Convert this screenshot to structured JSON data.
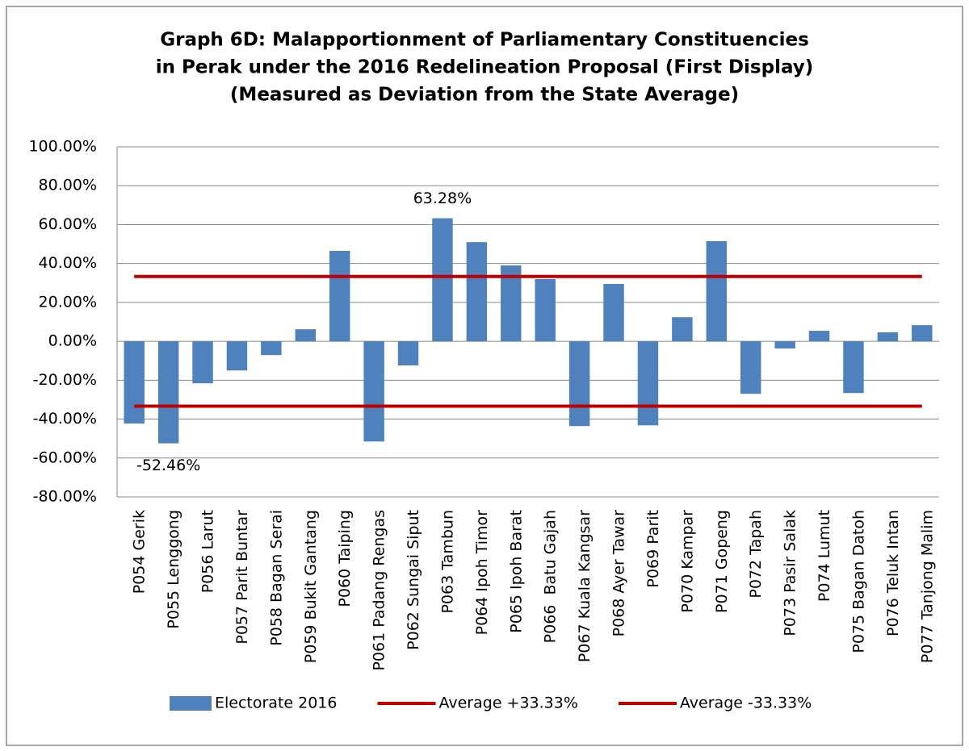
{
  "chart_data": {
    "type": "bar",
    "title": [
      "Graph 6D: Malapportionment of Parliamentary Constituencies",
      "in Perak under the 2016 Redelineation Proposal (First Display)",
      "(Measured as Deviation from the State Average)"
    ],
    "categories": [
      "P054 Gerik",
      "P055 Lenggong",
      "P056 Larut",
      "P057 Parit Buntar",
      "P058 Bagan Serai",
      "P059 Bukit Gantang",
      "P060 Taiping",
      "P061 Padang Rengas",
      "P062 Sungai Siput",
      "P063 Tambun",
      "P064 Ipoh Timor",
      "P065 Ipoh Barat",
      "P066  Batu Gajah",
      "P067 Kuala Kangsar",
      "P068 Ayer Tawar",
      "P069 Parit",
      "P070 Kampar",
      "P071 Gopeng",
      "P072 Tapah",
      "P073 Pasir Salak",
      "P074 Lumut",
      "P075 Bagan Datoh",
      "P076 Teluk Intan",
      "P077 Tanjong Malim"
    ],
    "series": [
      {
        "name": "Electorate 2016",
        "type": "bar",
        "color": "#4f81bd",
        "values": [
          -42.3,
          -52.46,
          -21.6,
          -15,
          -7.1,
          6.2,
          46.5,
          -51.5,
          -12.4,
          63.28,
          51,
          39,
          32,
          -43.6,
          29.5,
          -43.2,
          12.4,
          51.5,
          -27,
          -3.7,
          5.4,
          -26.6,
          4.6,
          8.3
        ],
        "value_labels": [
          null,
          "-52.46%",
          null,
          null,
          null,
          null,
          null,
          null,
          null,
          "63.28%",
          null,
          null,
          null,
          null,
          null,
          null,
          null,
          null,
          null,
          null,
          null,
          null,
          null,
          null
        ]
      },
      {
        "name": "Average +33.33%",
        "type": "line",
        "color": "#c00000",
        "values": [
          33.33,
          33.33,
          33.33,
          33.33,
          33.33,
          33.33,
          33.33,
          33.33,
          33.33,
          33.33,
          33.33,
          33.33,
          33.33,
          33.33,
          33.33,
          33.33,
          33.33,
          33.33,
          33.33,
          33.33,
          33.33,
          33.33,
          33.33,
          33.33
        ]
      },
      {
        "name": "Average -33.33%",
        "type": "line",
        "color": "#c00000",
        "values": [
          -33.33,
          -33.33,
          -33.33,
          -33.33,
          -33.33,
          -33.33,
          -33.33,
          -33.33,
          -33.33,
          -33.33,
          -33.33,
          -33.33,
          -33.33,
          -33.33,
          -33.33,
          -33.33,
          -33.33,
          -33.33,
          -33.33,
          -33.33,
          -33.33,
          -33.33,
          -33.33,
          -33.33
        ]
      }
    ],
    "ylim": [
      -80,
      100
    ],
    "yticks": [
      {
        "value": -80,
        "label": "-80.00%"
      },
      {
        "value": -60,
        "label": "-60.00%"
      },
      {
        "value": -40,
        "label": "-40.00%"
      },
      {
        "value": -20,
        "label": "-20.00%"
      },
      {
        "value": 0,
        "label": "0.00%"
      },
      {
        "value": 20,
        "label": "20.00%"
      },
      {
        "value": 40,
        "label": "40.00%"
      },
      {
        "value": 60,
        "label": "60.00%"
      },
      {
        "value": 80,
        "label": "80.00%"
      },
      {
        "value": 100,
        "label": "100.00%"
      }
    ],
    "grid": true,
    "legend": "bottom"
  }
}
